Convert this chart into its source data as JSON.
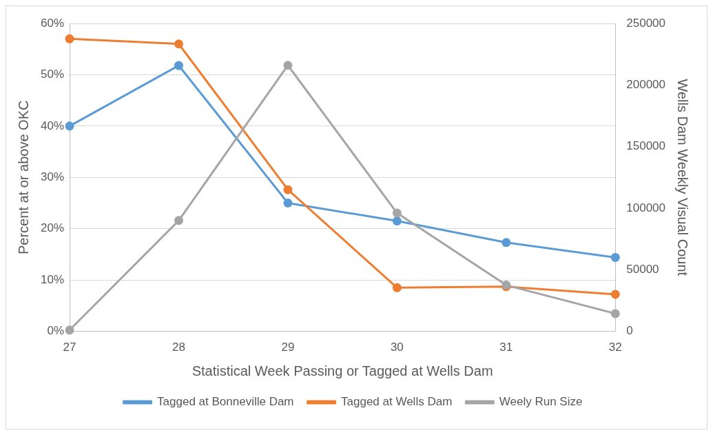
{
  "chart_data": {
    "type": "line",
    "xlabel": "Statistical Week Passing or Tagged at Wells Dam",
    "ylabel": "Percent at or above OKC",
    "y2label": "Wells Dam Weekly Visual Count",
    "x": [
      27,
      28,
      29,
      30,
      31,
      32
    ],
    "xlim": [
      27,
      32
    ],
    "xticks": [
      27,
      28,
      29,
      30,
      31,
      32
    ],
    "ylim": [
      0,
      0.6
    ],
    "yticks": [
      {
        "value": 0,
        "label": "0%"
      },
      {
        "value": 0.1,
        "label": "10%"
      },
      {
        "value": 0.2,
        "label": "20%"
      },
      {
        "value": 0.3,
        "label": "30%"
      },
      {
        "value": 0.4,
        "label": "40%"
      },
      {
        "value": 0.5,
        "label": "50%"
      },
      {
        "value": 0.6,
        "label": "60%"
      }
    ],
    "y2lim": [
      0,
      250000
    ],
    "y2ticks": [
      0,
      50000,
      100000,
      150000,
      200000,
      250000
    ],
    "series": [
      {
        "name": "Tagged at Bonneville Dam",
        "color": "#5b9bd5",
        "values": [
          0.4,
          0.518,
          0.25,
          0.215,
          0.173,
          0.144
        ]
      },
      {
        "name": "Tagged at Wells Dam",
        "color": "#ed7d31",
        "values": [
          0.57,
          0.56,
          0.276,
          0.085,
          0.087,
          0.072
        ]
      },
      {
        "name": "Weely Run Size",
        "color": "#a5a5a5",
        "axis": "y2",
        "values": [
          1000,
          90000,
          216000,
          96000,
          37500,
          14400
        ]
      }
    ],
    "grid": "y",
    "legend": "bottom",
    "marker": "circle",
    "line_style": "solid"
  }
}
